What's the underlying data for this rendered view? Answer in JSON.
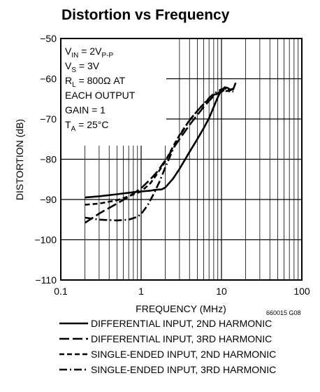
{
  "chart_data": {
    "type": "line",
    "title": "Distortion vs Frequency",
    "xlabel": "FREQUENCY (MHz)",
    "ylabel": "DISTORTION (dB)",
    "figure_id": "660015 G08",
    "x_scale": "log",
    "xlim": [
      0.1,
      100
    ],
    "ylim": [
      -110,
      -50
    ],
    "grid": true,
    "legend_position": "bottom",
    "x_ticks": [
      {
        "value": 0.1,
        "label": "0.1"
      },
      {
        "value": 1,
        "label": "1"
      },
      {
        "value": 10,
        "label": "10"
      },
      {
        "value": 100,
        "label": "100"
      }
    ],
    "y_ticks": [
      {
        "value": -50,
        "label": "−50"
      },
      {
        "value": -60,
        "label": "−60"
      },
      {
        "value": -70,
        "label": "−70"
      },
      {
        "value": -80,
        "label": "−80"
      },
      {
        "value": -90,
        "label": "−90"
      },
      {
        "value": -100,
        "label": "−100"
      },
      {
        "value": -110,
        "label": "−110"
      }
    ],
    "conditions": {
      "vin": {
        "main": "V",
        "sub": "IN",
        "rest": " = 2V",
        "sub2": "P-P"
      },
      "vs": {
        "main": "V",
        "sub": "S",
        "rest": " = 3V"
      },
      "rl": {
        "main": "R",
        "sub": "L",
        "rest": " = 800Ω AT"
      },
      "each": "EACH OUTPUT",
      "gain": "GAIN = 1",
      "ta": {
        "main": "T",
        "sub": "A",
        "rest": " = 25°C"
      }
    },
    "series": [
      {
        "name": "DIFFERENTIAL INPUT, 2ND HARMONIC",
        "dash": "solid",
        "points": [
          [
            0.2,
            -89.5
          ],
          [
            0.3,
            -89.2
          ],
          [
            0.5,
            -88.7
          ],
          [
            0.8,
            -88.2
          ],
          [
            1.0,
            -88.0
          ],
          [
            1.3,
            -87.8
          ],
          [
            1.5,
            -87.6
          ],
          [
            1.8,
            -87.5
          ],
          [
            2.0,
            -87.0
          ],
          [
            2.5,
            -84.8
          ],
          [
            3.0,
            -82.4
          ],
          [
            4.0,
            -78.2
          ],
          [
            5.0,
            -75.0
          ],
          [
            6.0,
            -72.3
          ],
          [
            7.0,
            -69.8
          ],
          [
            8.0,
            -67.0
          ],
          [
            9.0,
            -64.6
          ],
          [
            10.0,
            -62.8
          ],
          [
            11.0,
            -62.1
          ],
          [
            12.0,
            -62.3
          ],
          [
            13.0,
            -62.8
          ],
          [
            14.0,
            -62.6
          ],
          [
            15.0,
            -61.0
          ]
        ]
      },
      {
        "name": "DIFFERENTIAL INPUT, 3RD HARMONIC",
        "dash": "long-dash",
        "points": [
          [
            0.2,
            -95.8
          ],
          [
            0.3,
            -93.5
          ],
          [
            0.5,
            -91.0
          ],
          [
            0.7,
            -89.3
          ],
          [
            1.0,
            -87.2
          ],
          [
            1.3,
            -85.0
          ],
          [
            1.6,
            -83.0
          ],
          [
            2.0,
            -80.3
          ],
          [
            2.5,
            -77.3
          ],
          [
            3.0,
            -75.0
          ],
          [
            4.0,
            -71.5
          ],
          [
            5.0,
            -69.0
          ],
          [
            6.0,
            -67.0
          ],
          [
            7.0,
            -65.5
          ],
          [
            8.0,
            -64.3
          ],
          [
            10.0,
            -63.0
          ],
          [
            12.0,
            -62.8
          ],
          [
            14.0,
            -62.5
          ]
        ]
      },
      {
        "name": "SINGLE-ENDED INPUT, 2ND HARMONIC",
        "dash": "short-dash",
        "points": [
          [
            0.2,
            -91.3
          ],
          [
            0.3,
            -91.0
          ],
          [
            0.5,
            -90.2
          ],
          [
            0.7,
            -89.2
          ],
          [
            1.0,
            -88.0
          ],
          [
            1.3,
            -86.0
          ],
          [
            1.6,
            -83.5
          ],
          [
            2.0,
            -80.5
          ],
          [
            2.5,
            -76.8
          ],
          [
            3.0,
            -74.0
          ],
          [
            4.0,
            -70.3
          ],
          [
            5.0,
            -68.0
          ],
          [
            6.0,
            -66.3
          ],
          [
            7.0,
            -65.0
          ],
          [
            8.0,
            -64.0
          ],
          [
            10.0,
            -63.2
          ],
          [
            12.0,
            -63.0
          ],
          [
            14.0,
            -63.3
          ]
        ]
      },
      {
        "name": "SINGLE-ENDED INPUT, 3RD HARMONIC",
        "dash": "dash-dot",
        "points": [
          [
            0.2,
            -94.5
          ],
          [
            0.3,
            -95.0
          ],
          [
            0.5,
            -95.2
          ],
          [
            0.7,
            -95.0
          ],
          [
            0.9,
            -94.3
          ],
          [
            1.0,
            -93.6
          ],
          [
            1.2,
            -91.5
          ],
          [
            1.4,
            -89.0
          ],
          [
            1.7,
            -85.5
          ],
          [
            2.0,
            -82.0
          ],
          [
            2.5,
            -77.5
          ],
          [
            3.0,
            -74.2
          ],
          [
            4.0,
            -70.4
          ],
          [
            5.0,
            -68.0
          ],
          [
            6.0,
            -66.2
          ],
          [
            7.0,
            -64.8
          ],
          [
            8.0,
            -63.7
          ],
          [
            10.0,
            -62.6
          ],
          [
            12.0,
            -62.4
          ],
          [
            14.0,
            -63.2
          ]
        ]
      }
    ]
  }
}
